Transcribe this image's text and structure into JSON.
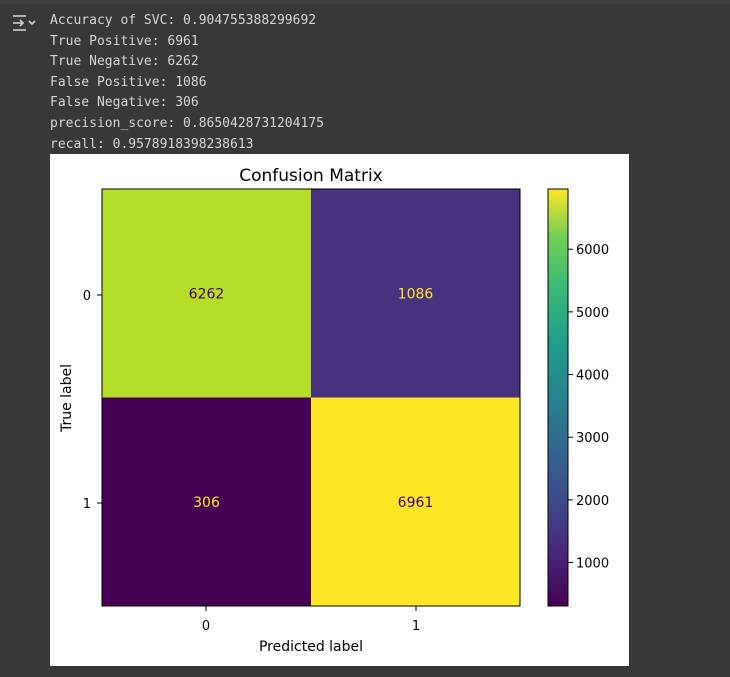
{
  "output": {
    "lines": [
      "Accuracy of SVC: 0.904755388299692",
      "True Positive: 6961",
      "True Negative: 6262",
      "False Positive: 1086",
      "False Negative: 306",
      "precision_score: 0.8650428731204175",
      "recall: 0.9578918398238613"
    ]
  },
  "icons": {
    "output_toggle": "output-collapse-icon"
  },
  "chart_data": {
    "type": "heatmap",
    "title": "Confusion Matrix",
    "xlabel": "Predicted label",
    "ylabel": "True label",
    "x_categories": [
      "0",
      "1"
    ],
    "y_categories": [
      "0",
      "1"
    ],
    "values": [
      [
        6262,
        1086
      ],
      [
        306,
        6961
      ]
    ],
    "colormap": "viridis",
    "colorbar": {
      "range": [
        306,
        6961
      ],
      "ticks": [
        "1000",
        "2000",
        "3000",
        "4000",
        "5000",
        "6000"
      ]
    },
    "colors": {
      "cell_0_0": "#b5de2b",
      "cell_0_1": "#46327e",
      "cell_1_0": "#440154",
      "cell_1_1": "#fde725",
      "text_on_light": "#440154",
      "text_on_dark": "#fde725"
    }
  }
}
